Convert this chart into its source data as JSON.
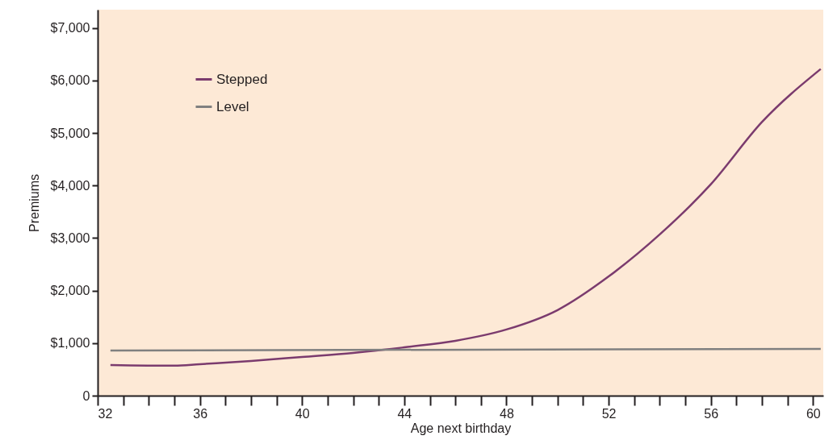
{
  "chart_data": {
    "type": "line",
    "xlabel": "Age next birthday",
    "ylabel": "Premiums",
    "xlim": [
      32,
      60.4
    ],
    "xticks": [
      32,
      {
        "value": 33,
        "label": null
      },
      {
        "value": 34,
        "label": null
      },
      {
        "value": 35,
        "label": null
      },
      36,
      {
        "value": 37,
        "label": null
      },
      {
        "value": 38,
        "label": null
      },
      {
        "value": 39,
        "label": null
      },
      40,
      {
        "value": 41,
        "label": null
      },
      {
        "value": 42,
        "label": null
      },
      {
        "value": 43,
        "label": null
      },
      44,
      {
        "value": 45,
        "label": null
      },
      {
        "value": 46,
        "label": null
      },
      {
        "value": 47,
        "label": null
      },
      48,
      {
        "value": 49,
        "label": null
      },
      {
        "value": 50,
        "label": null
      },
      {
        "value": 51,
        "label": null
      },
      52,
      {
        "value": 53,
        "label": null
      },
      {
        "value": 54,
        "label": null
      },
      {
        "value": 55,
        "label": null
      },
      56,
      {
        "value": 57,
        "label": null
      },
      {
        "value": 58,
        "label": null
      },
      {
        "value": 59,
        "label": null
      },
      60
    ],
    "ylim": [
      0,
      7350
    ],
    "yticks": [
      0,
      {
        "value": 1000,
        "label": "$1,000"
      },
      {
        "value": 2000,
        "label": "$2,000"
      },
      {
        "value": 3000,
        "label": "$3,000"
      },
      {
        "value": 4000,
        "label": "$4,000"
      },
      {
        "value": 5000,
        "label": "$5,000"
      },
      {
        "value": 6000,
        "label": "$6,000"
      },
      {
        "value": 7000,
        "label": "$7,000"
      }
    ],
    "legend": "top left",
    "line_style": "solid",
    "series": [
      {
        "name": "Stepped",
        "color": "#7b3b6e",
        "x": [
          32.5,
          35,
          36,
          38,
          40,
          42,
          43.5,
          44,
          46,
          48,
          50,
          52,
          54,
          56,
          58,
          60.3
        ],
        "values": [
          584,
          570,
          600,
          660,
          737,
          815,
          890,
          920,
          1045,
          1260,
          1630,
          2270,
          3070,
          4025,
          5210,
          6220
        ]
      },
      {
        "name": "Level",
        "color": "#808080",
        "x": [
          32.5,
          60.3
        ],
        "values": [
          860,
          890
        ]
      }
    ]
  }
}
